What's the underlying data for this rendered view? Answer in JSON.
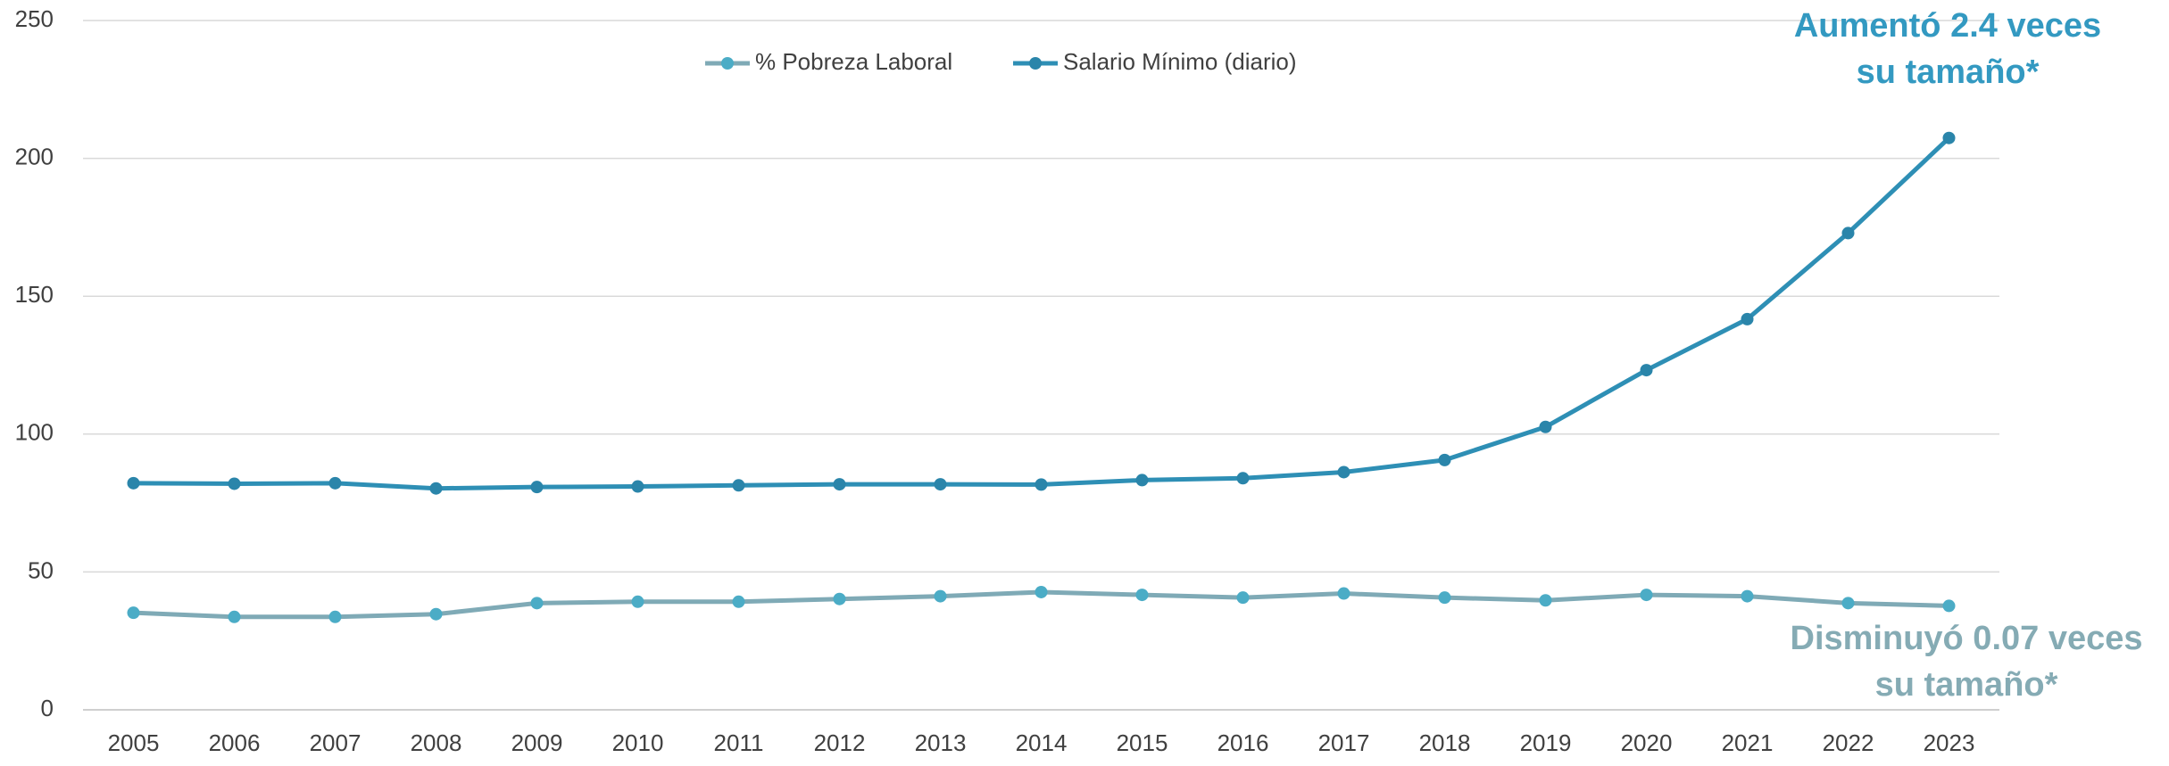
{
  "chart_data": {
    "type": "line",
    "categories": [
      "2005",
      "2006",
      "2007",
      "2008",
      "2009",
      "2010",
      "2011",
      "2012",
      "2013",
      "2014",
      "2015",
      "2016",
      "2017",
      "2018",
      "2019",
      "2020",
      "2021",
      "2022",
      "2023"
    ],
    "series": [
      {
        "name": "% Pobreza Laboral",
        "color": "#7faab6",
        "marker_color": "#4bacc6",
        "values": [
          35.2,
          33.7,
          33.7,
          34.7,
          38.7,
          39.2,
          39.2,
          40.2,
          41.2,
          42.7,
          41.7,
          40.7,
          42.2,
          40.7,
          39.7,
          41.7,
          41.2,
          38.7,
          37.7
        ]
      },
      {
        "name": "Salario Mínimo (diario)",
        "color": "#2e8fb5",
        "marker_color": "#2a85aa",
        "values": [
          82.2,
          82.0,
          82.2,
          80.3,
          80.8,
          81.0,
          81.4,
          81.8,
          81.8,
          81.7,
          83.3,
          84.0,
          86.2,
          90.6,
          102.6,
          123.2,
          141.7,
          172.9,
          207.4
        ]
      }
    ],
    "ylim": [
      0,
      250
    ],
    "yticks": [
      0,
      50,
      100,
      150,
      200,
      250
    ],
    "grid": true,
    "legend": "top",
    "annotations": [
      {
        "lines": [
          "Aumentó 2.4 veces",
          "su tamaño*"
        ],
        "color": "#3399c1"
      },
      {
        "lines": [
          "Disminuyó 0.07 veces",
          "su tamaño*"
        ],
        "color": "#85abb4"
      }
    ]
  }
}
